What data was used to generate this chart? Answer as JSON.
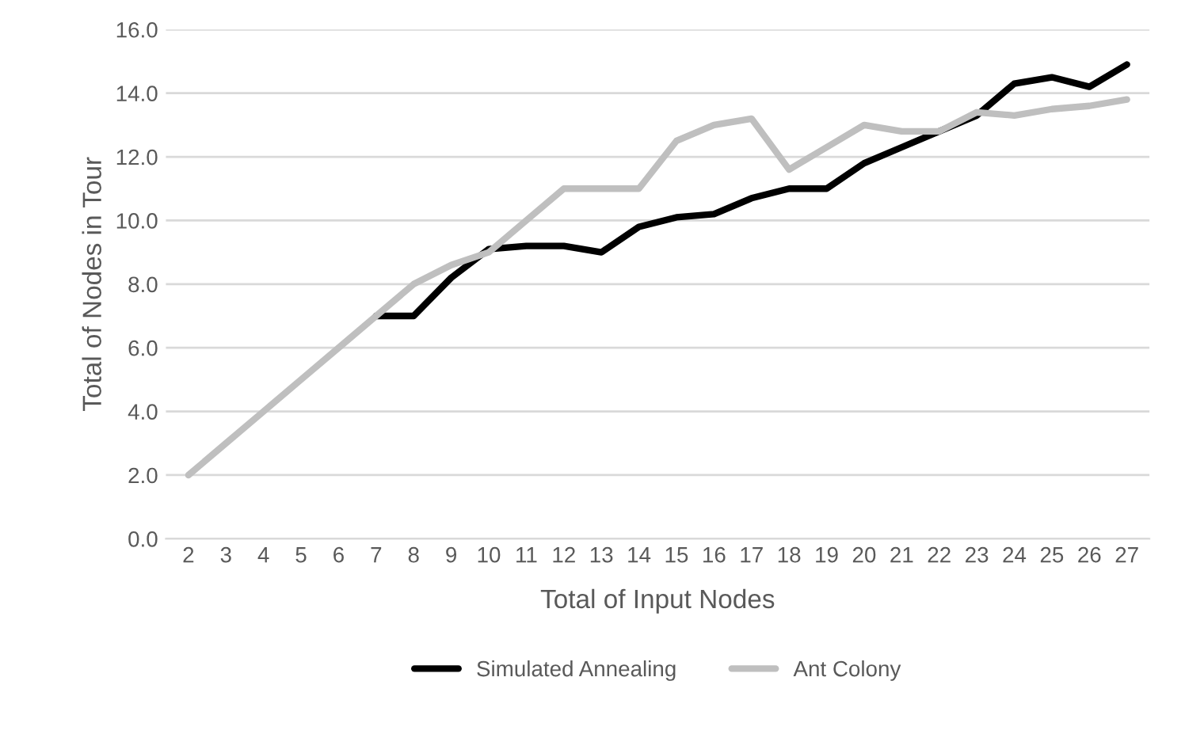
{
  "chart_data": {
    "type": "line",
    "xlabel": "Total of Input Nodes",
    "ylabel": "Total of Nodes in Tour",
    "categories": [
      "2",
      "3",
      "4",
      "5",
      "6",
      "7",
      "8",
      "9",
      "10",
      "11",
      "12",
      "13",
      "14",
      "15",
      "16",
      "17",
      "18",
      "19",
      "20",
      "21",
      "22",
      "23",
      "24",
      "25",
      "26",
      "27"
    ],
    "series": [
      {
        "name": "Simulated Annealing",
        "color": "#000000",
        "values": [
          null,
          null,
          null,
          null,
          null,
          7,
          7,
          8.2,
          9.1,
          9.2,
          9.2,
          9.0,
          9.8,
          10.1,
          10.2,
          10.7,
          11,
          11,
          11.8,
          12.3,
          12.8,
          13.3,
          14.3,
          14.5,
          14.2,
          14.9
        ]
      },
      {
        "name": "Ant Colony",
        "color": "#bfbfbf",
        "values": [
          2,
          3,
          4,
          5,
          6,
          7,
          8,
          8.6,
          9,
          10,
          11,
          11,
          11,
          12.5,
          13,
          13.2,
          11.6,
          12.3,
          13,
          12.8,
          12.8,
          13.4,
          13.3,
          13.5,
          13.6,
          13.8
        ]
      }
    ],
    "ylim": [
      0,
      16
    ],
    "yticks": [
      {
        "value": 0,
        "label": "0.0"
      },
      {
        "value": 2,
        "label": "2.0"
      },
      {
        "value": 4,
        "label": "4.0"
      },
      {
        "value": 6,
        "label": "6.0"
      },
      {
        "value": 8,
        "label": "8.0"
      },
      {
        "value": 10,
        "label": "10.0"
      },
      {
        "value": 12,
        "label": "12.0"
      },
      {
        "value": 14,
        "label": "14.0"
      },
      {
        "value": 16,
        "label": "16.0"
      }
    ],
    "grid": "y",
    "legend": "bottom",
    "marker": "none",
    "line_style": "solid"
  }
}
